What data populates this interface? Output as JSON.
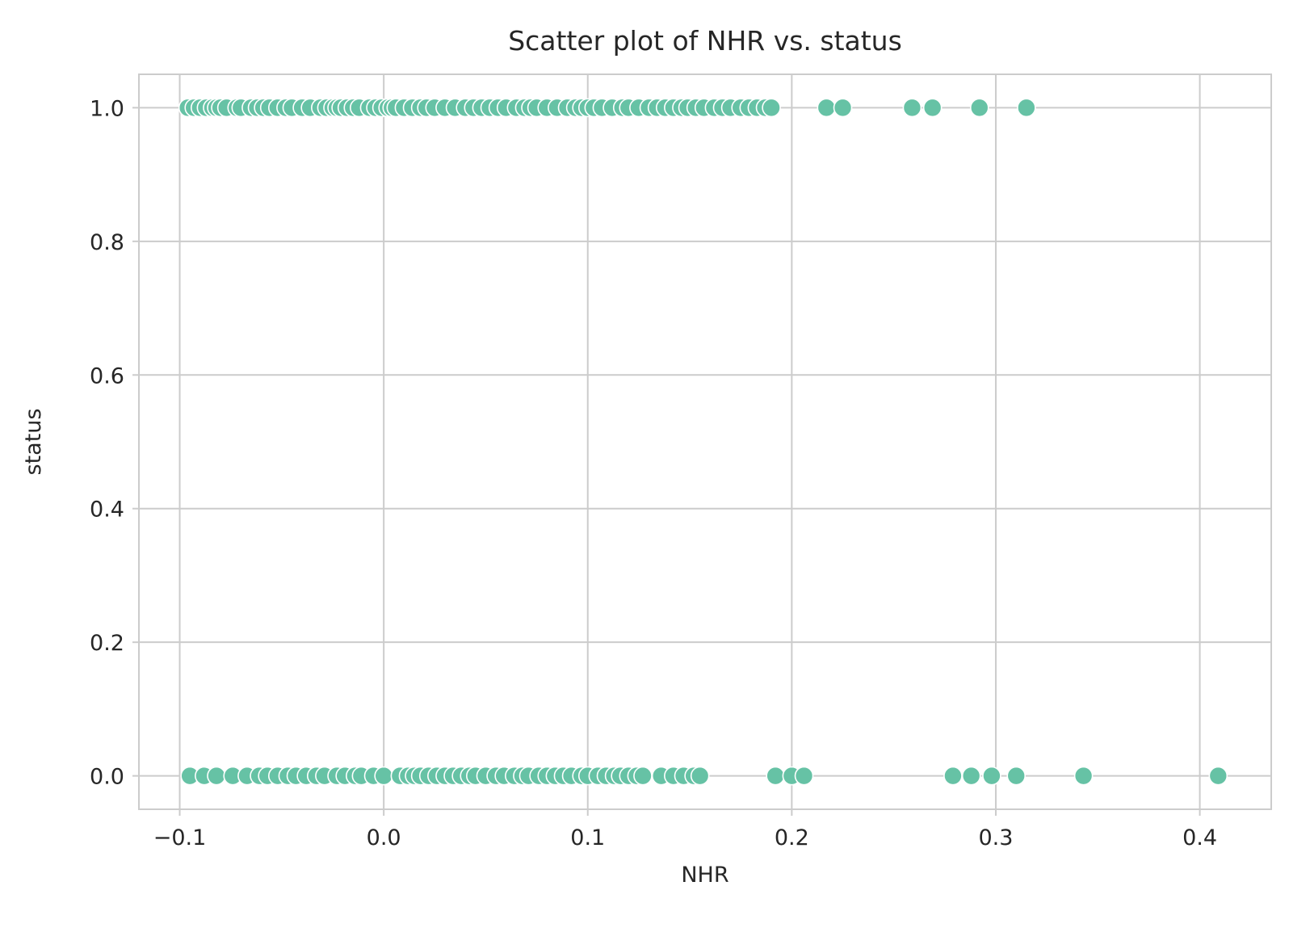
{
  "chart_data": {
    "type": "scatter",
    "title": "Scatter plot of NHR vs. status",
    "xlabel": "NHR",
    "ylabel": "status",
    "xlim": [
      -0.12,
      0.435
    ],
    "ylim": [
      -0.05,
      1.05
    ],
    "x_ticks": [
      -0.1,
      0.0,
      0.1,
      0.2,
      0.3,
      0.4
    ],
    "x_tick_labels": [
      "−0.1",
      "0.0",
      "0.1",
      "0.2",
      "0.3",
      "0.4"
    ],
    "y_ticks": [
      0.0,
      0.2,
      0.4,
      0.6,
      0.8,
      1.0
    ],
    "y_tick_labels": [
      "0.0",
      "0.2",
      "0.4",
      "0.6",
      "0.8",
      "1.0"
    ],
    "grid": true,
    "marker_color": "#66c2a5",
    "marker_edge_color": "#ffffff",
    "series": [
      {
        "points": [
          [
            -0.096,
            1
          ],
          [
            -0.093,
            1
          ],
          [
            -0.09,
            1
          ],
          [
            -0.087,
            1
          ],
          [
            -0.084,
            1
          ],
          [
            -0.082,
            1
          ],
          [
            -0.08,
            1
          ],
          [
            -0.077,
            1
          ],
          [
            -0.072,
            1
          ],
          [
            -0.07,
            1
          ],
          [
            -0.065,
            1
          ],
          [
            -0.062,
            1
          ],
          [
            -0.059,
            1
          ],
          [
            -0.056,
            1
          ],
          [
            -0.052,
            1
          ],
          [
            -0.048,
            1
          ],
          [
            -0.045,
            1
          ],
          [
            -0.04,
            1
          ],
          [
            -0.036,
            1
          ],
          [
            -0.031,
            1
          ],
          [
            -0.028,
            1
          ],
          [
            -0.025,
            1
          ],
          [
            -0.023,
            1
          ],
          [
            -0.021,
            1
          ],
          [
            -0.018,
            1
          ],
          [
            -0.015,
            1
          ],
          [
            -0.012,
            1
          ],
          [
            -0.007,
            1
          ],
          [
            -0.004,
            1
          ],
          [
            -0.001,
            1
          ],
          [
            0.002,
            1
          ],
          [
            0.004,
            1
          ],
          [
            0.006,
            1
          ],
          [
            0.01,
            1
          ],
          [
            0.014,
            1
          ],
          [
            0.018,
            1
          ],
          [
            0.021,
            1
          ],
          [
            0.025,
            1
          ],
          [
            0.03,
            1
          ],
          [
            0.035,
            1
          ],
          [
            0.04,
            1
          ],
          [
            0.044,
            1
          ],
          [
            0.048,
            1
          ],
          [
            0.052,
            1
          ],
          [
            0.056,
            1
          ],
          [
            0.06,
            1
          ],
          [
            0.065,
            1
          ],
          [
            0.069,
            1
          ],
          [
            0.072,
            1
          ],
          [
            0.075,
            1
          ],
          [
            0.08,
            1
          ],
          [
            0.085,
            1
          ],
          [
            0.09,
            1
          ],
          [
            0.094,
            1
          ],
          [
            0.097,
            1
          ],
          [
            0.1,
            1
          ],
          [
            0.103,
            1
          ],
          [
            0.107,
            1
          ],
          [
            0.112,
            1
          ],
          [
            0.117,
            1
          ],
          [
            0.12,
            1
          ],
          [
            0.125,
            1
          ],
          [
            0.13,
            1
          ],
          [
            0.134,
            1
          ],
          [
            0.138,
            1
          ],
          [
            0.142,
            1
          ],
          [
            0.146,
            1
          ],
          [
            0.149,
            1
          ],
          [
            0.153,
            1
          ],
          [
            0.157,
            1
          ],
          [
            0.162,
            1
          ],
          [
            0.166,
            1
          ],
          [
            0.17,
            1
          ],
          [
            0.175,
            1
          ],
          [
            0.179,
            1
          ],
          [
            0.183,
            1
          ],
          [
            0.187,
            1
          ],
          [
            0.19,
            1
          ],
          [
            0.217,
            1
          ],
          [
            0.225,
            1
          ],
          [
            0.259,
            1
          ],
          [
            0.269,
            1
          ],
          [
            0.292,
            1
          ],
          [
            0.315,
            1
          ],
          [
            -0.095,
            0
          ],
          [
            -0.088,
            0
          ],
          [
            -0.082,
            0
          ],
          [
            -0.074,
            0
          ],
          [
            -0.067,
            0
          ],
          [
            -0.061,
            0
          ],
          [
            -0.057,
            0
          ],
          [
            -0.052,
            0
          ],
          [
            -0.047,
            0
          ],
          [
            -0.043,
            0
          ],
          [
            -0.038,
            0
          ],
          [
            -0.033,
            0
          ],
          [
            -0.029,
            0
          ],
          [
            -0.023,
            0
          ],
          [
            -0.019,
            0
          ],
          [
            -0.014,
            0
          ],
          [
            -0.011,
            0
          ],
          [
            -0.005,
            0
          ],
          [
            0.0,
            0
          ],
          [
            0.008,
            0
          ],
          [
            0.012,
            0
          ],
          [
            0.015,
            0
          ],
          [
            0.018,
            0
          ],
          [
            0.022,
            0
          ],
          [
            0.026,
            0
          ],
          [
            0.03,
            0
          ],
          [
            0.034,
            0
          ],
          [
            0.038,
            0
          ],
          [
            0.042,
            0
          ],
          [
            0.045,
            0
          ],
          [
            0.05,
            0
          ],
          [
            0.055,
            0
          ],
          [
            0.059,
            0
          ],
          [
            0.064,
            0
          ],
          [
            0.068,
            0
          ],
          [
            0.071,
            0
          ],
          [
            0.076,
            0
          ],
          [
            0.08,
            0
          ],
          [
            0.084,
            0
          ],
          [
            0.088,
            0
          ],
          [
            0.092,
            0
          ],
          [
            0.097,
            0
          ],
          [
            0.1,
            0
          ],
          [
            0.105,
            0
          ],
          [
            0.109,
            0
          ],
          [
            0.113,
            0
          ],
          [
            0.116,
            0
          ],
          [
            0.12,
            0
          ],
          [
            0.124,
            0
          ],
          [
            0.127,
            0
          ],
          [
            0.136,
            0
          ],
          [
            0.142,
            0
          ],
          [
            0.147,
            0
          ],
          [
            0.152,
            0
          ],
          [
            0.155,
            0
          ],
          [
            0.192,
            0
          ],
          [
            0.2,
            0
          ],
          [
            0.206,
            0
          ],
          [
            0.279,
            0
          ],
          [
            0.288,
            0
          ],
          [
            0.298,
            0
          ],
          [
            0.31,
            0
          ],
          [
            0.343,
            0
          ],
          [
            0.409,
            0
          ]
        ]
      }
    ]
  }
}
